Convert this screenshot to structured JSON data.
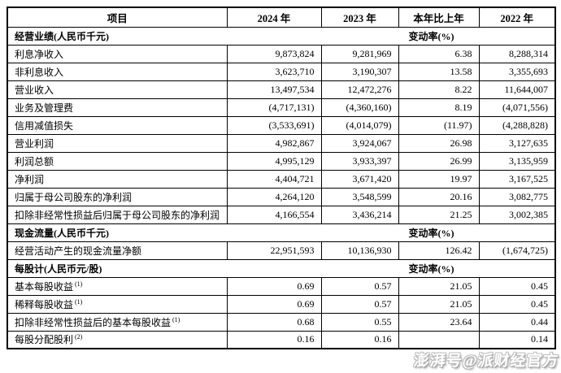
{
  "colors": {
    "background": "#ffffff",
    "text": "#000000",
    "border": "#000000",
    "watermark_fill": "#ffffff",
    "watermark_outline": "#bdbdbd"
  },
  "watermark": {
    "text": "澎湃号@派财经官方"
  },
  "table": {
    "headers": [
      "项目",
      "2024 年",
      "2023 年",
      "本年比上年",
      "2022 年"
    ],
    "change_rate_label": "变动率(%)",
    "rows": [
      {
        "type": "section",
        "label": "经营业绩(人民币千元)",
        "note": "变动率(%)"
      },
      {
        "type": "data",
        "label": "利息净收入",
        "sup": "",
        "y2024": "9,873,824",
        "y2023": "9,281,969",
        "chg": "6.38",
        "y2022": "8,288,314"
      },
      {
        "type": "data",
        "label": "非利息收入",
        "sup": "",
        "y2024": "3,623,710",
        "y2023": "3,190,307",
        "chg": "13.58",
        "y2022": "3,355,693"
      },
      {
        "type": "data",
        "label": "营业收入",
        "sup": "",
        "y2024": "13,497,534",
        "y2023": "12,472,276",
        "chg": "8.22",
        "y2022": "11,644,007"
      },
      {
        "type": "data",
        "label": "业务及管理费",
        "sup": "",
        "y2024": "(4,717,131)",
        "y2023": "(4,360,160)",
        "chg": "8.19",
        "y2022": "(4,071,556)"
      },
      {
        "type": "data",
        "label": "信用减值损失",
        "sup": "",
        "y2024": "(3,533,691)",
        "y2023": "(4,014,079)",
        "chg": "(11.97)",
        "y2022": "(4,288,828)"
      },
      {
        "type": "data",
        "label": "营业利润",
        "sup": "",
        "y2024": "4,982,867",
        "y2023": "3,924,067",
        "chg": "26.98",
        "y2022": "3,127,635"
      },
      {
        "type": "data",
        "label": "利润总额",
        "sup": "",
        "y2024": "4,995,129",
        "y2023": "3,933,397",
        "chg": "26.99",
        "y2022": "3,135,959"
      },
      {
        "type": "data",
        "label": "净利润",
        "sup": "",
        "y2024": "4,404,721",
        "y2023": "3,671,420",
        "chg": "19.97",
        "y2022": "3,167,525"
      },
      {
        "type": "data",
        "label": "归属于母公司股东的净利润",
        "sup": "",
        "y2024": "4,264,120",
        "y2023": "3,548,599",
        "chg": "20.16",
        "y2022": "3,082,775"
      },
      {
        "type": "data",
        "label": "扣除非经常性损益后归属于母公司股东的净利润",
        "sup": "",
        "y2024": "4,166,554",
        "y2023": "3,436,214",
        "chg": "21.25",
        "y2022": "3,002,385"
      },
      {
        "type": "section",
        "label": "现金流量(人民币千元)",
        "note": "变动率(%)"
      },
      {
        "type": "data",
        "label": "经营活动产生的现金流量净额",
        "sup": "",
        "y2024": "22,951,593",
        "y2023": "10,136,930",
        "chg": "126.42",
        "y2022": "(1,674,725)"
      },
      {
        "type": "section",
        "label": "每股计(人民币元/股)",
        "note": "变动率(%)"
      },
      {
        "type": "data",
        "label": "基本每股收益",
        "sup": "(1)",
        "y2024": "0.69",
        "y2023": "0.57",
        "chg": "21.05",
        "y2022": "0.45"
      },
      {
        "type": "data",
        "label": "稀释每股收益",
        "sup": "(1)",
        "y2024": "0.69",
        "y2023": "0.57",
        "chg": "21.05",
        "y2022": "0.45"
      },
      {
        "type": "data",
        "label": "扣除非经常性损益后的基本每股收益",
        "sup": "(1)",
        "y2024": "0.68",
        "y2023": "0.55",
        "chg": "23.64",
        "y2022": "0.44"
      },
      {
        "type": "data",
        "label": "每股分配股利",
        "sup": "(2)",
        "y2024": "0.16",
        "y2023": "0.16",
        "chg": "",
        "y2022": "0.14"
      }
    ]
  }
}
